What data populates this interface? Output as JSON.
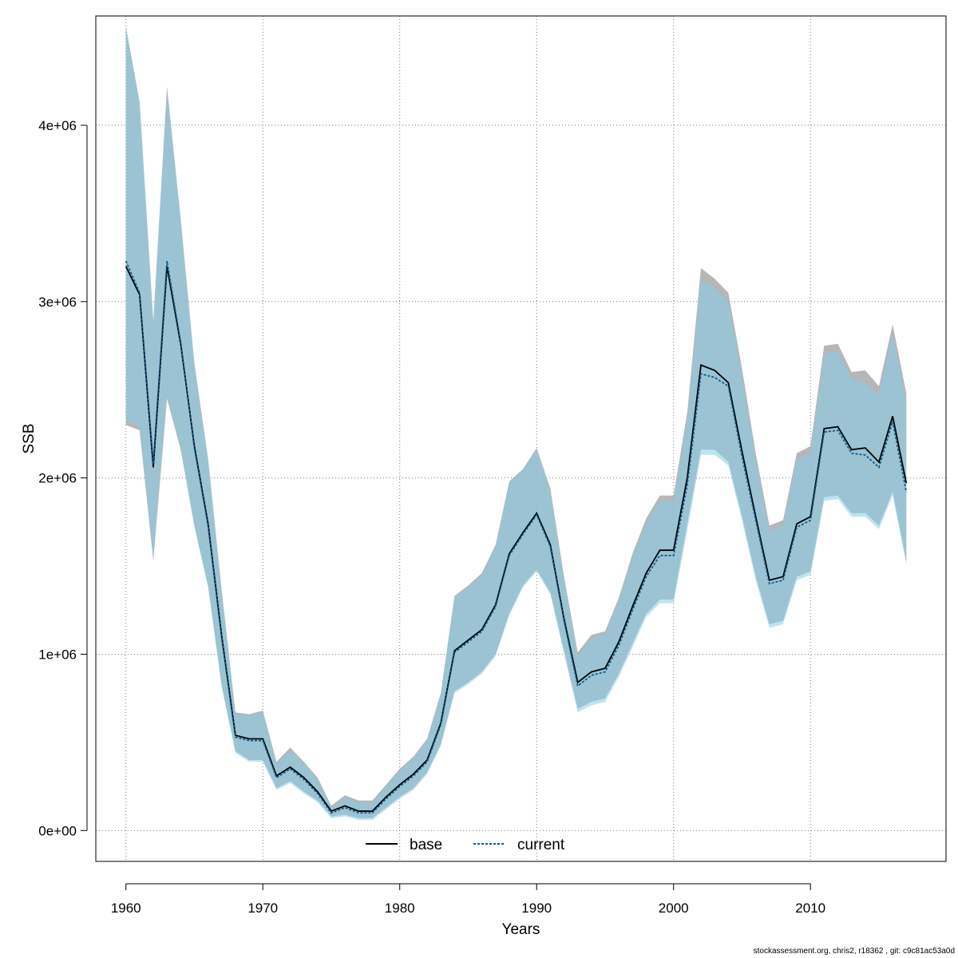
{
  "chart_data": {
    "type": "line",
    "title": "",
    "xlabel": "Years",
    "ylabel": "SSB",
    "xlim": [
      1957.8,
      1960.0
    ],
    "ylim": [
      -175000,
      4620000
    ],
    "x_ticks": [
      1960,
      1970,
      1980,
      1990,
      2000,
      2010
    ],
    "x_tick_labels": [
      "1960",
      "1970",
      "1980",
      "1990",
      "2000",
      "2010"
    ],
    "y_ticks": [
      0,
      1000000,
      2000000,
      3000000,
      4000000
    ],
    "y_tick_labels": [
      "0e+00",
      "1e+06",
      "2e+06",
      "3e+06",
      "4e+06"
    ],
    "grid": true,
    "legend_position": "bottom-center",
    "years": [
      1960,
      1961,
      1962,
      1963,
      1964,
      1965,
      1966,
      1967,
      1968,
      1969,
      1970,
      1971,
      1972,
      1973,
      1974,
      1975,
      1976,
      1977,
      1978,
      1979,
      1980,
      1981,
      1982,
      1983,
      1984,
      1985,
      1986,
      1987,
      1988,
      1989,
      1990,
      1991,
      1992,
      1993,
      1994,
      1995,
      1996,
      1997,
      1998,
      1999,
      2000,
      2001,
      2002,
      2003,
      2004,
      2005,
      2006,
      2007,
      2008,
      2009,
      2010,
      2011,
      2012,
      2013,
      2014,
      2015,
      2016,
      2017
    ],
    "series": [
      {
        "name": "base",
        "line": "solid",
        "line_color": "#000000",
        "band_color": "#a9a9a9",
        "values": [
          3200000,
          3040000,
          2060000,
          3200000,
          2760000,
          2180000,
          1740000,
          1100000,
          540000,
          520000,
          520000,
          310000,
          360000,
          300000,
          220000,
          110000,
          140000,
          110000,
          110000,
          190000,
          260000,
          320000,
          400000,
          610000,
          1020000,
          1080000,
          1140000,
          1280000,
          1570000,
          1690000,
          1800000,
          1620000,
          1200000,
          840000,
          900000,
          920000,
          1070000,
          1270000,
          1460000,
          1590000,
          1590000,
          2000000,
          2640000,
          2610000,
          2540000,
          2150000,
          1780000,
          1420000,
          1440000,
          1740000,
          1780000,
          2280000,
          2290000,
          2160000,
          2170000,
          2090000,
          2350000,
          1970000
        ],
        "lower": [
          2300000,
          2270000,
          1530000,
          2450000,
          2160000,
          1730000,
          1390000,
          820000,
          450000,
          400000,
          400000,
          240000,
          280000,
          220000,
          170000,
          80000,
          90000,
          70000,
          70000,
          130000,
          190000,
          240000,
          330000,
          490000,
          790000,
          840000,
          900000,
          1000000,
          1230000,
          1390000,
          1480000,
          1350000,
          1020000,
          690000,
          730000,
          750000,
          890000,
          1060000,
          1230000,
          1310000,
          1310000,
          1740000,
          2160000,
          2160000,
          2090000,
          1780000,
          1440000,
          1170000,
          1190000,
          1440000,
          1470000,
          1890000,
          1900000,
          1800000,
          1800000,
          1730000,
          1920000,
          1530000
        ],
        "upper": [
          4560000,
          4130000,
          2880000,
          4220000,
          3470000,
          2650000,
          2110000,
          1360000,
          670000,
          660000,
          680000,
          390000,
          470000,
          390000,
          300000,
          140000,
          200000,
          170000,
          170000,
          260000,
          350000,
          420000,
          520000,
          780000,
          1330000,
          1390000,
          1460000,
          1620000,
          1980000,
          2050000,
          2170000,
          1940000,
          1440000,
          1010000,
          1110000,
          1130000,
          1320000,
          1570000,
          1770000,
          1900000,
          1900000,
          2370000,
          3190000,
          3130000,
          3050000,
          2620000,
          2140000,
          1730000,
          1760000,
          2140000,
          2180000,
          2750000,
          2760000,
          2600000,
          2610000,
          2520000,
          2870000,
          2480000
        ]
      },
      {
        "name": "current",
        "line": "dashed",
        "line_color": "#0a5b8c",
        "band_color": "#87ceeb",
        "values": [
          3230000,
          3050000,
          2080000,
          3230000,
          2770000,
          2170000,
          1730000,
          1090000,
          530000,
          510000,
          510000,
          300000,
          350000,
          290000,
          210000,
          100000,
          130000,
          100000,
          100000,
          180000,
          250000,
          310000,
          390000,
          600000,
          1010000,
          1070000,
          1130000,
          1270000,
          1560000,
          1680000,
          1790000,
          1610000,
          1190000,
          820000,
          880000,
          900000,
          1050000,
          1250000,
          1440000,
          1560000,
          1560000,
          1960000,
          2590000,
          2570000,
          2520000,
          2120000,
          1760000,
          1400000,
          1420000,
          1720000,
          1760000,
          2260000,
          2270000,
          2140000,
          2130000,
          2060000,
          2320000,
          1920000
        ],
        "lower": [
          2330000,
          2290000,
          1550000,
          2470000,
          2170000,
          1720000,
          1380000,
          810000,
          440000,
          390000,
          390000,
          230000,
          270000,
          210000,
          160000,
          70000,
          80000,
          60000,
          60000,
          120000,
          180000,
          230000,
          320000,
          480000,
          780000,
          830000,
          890000,
          990000,
          1220000,
          1380000,
          1470000,
          1340000,
          1000000,
          670000,
          710000,
          730000,
          870000,
          1040000,
          1210000,
          1290000,
          1290000,
          1700000,
          2130000,
          2130000,
          2070000,
          1760000,
          1420000,
          1150000,
          1170000,
          1420000,
          1450000,
          1870000,
          1880000,
          1780000,
          1780000,
          1710000,
          1900000,
          1510000
        ],
        "upper": [
          4560000,
          4130000,
          2900000,
          4200000,
          3460000,
          2640000,
          2100000,
          1350000,
          660000,
          650000,
          670000,
          380000,
          460000,
          380000,
          290000,
          130000,
          190000,
          160000,
          160000,
          250000,
          340000,
          410000,
          510000,
          770000,
          1320000,
          1380000,
          1450000,
          1610000,
          1970000,
          2040000,
          2160000,
          1930000,
          1420000,
          990000,
          1090000,
          1110000,
          1300000,
          1550000,
          1750000,
          1870000,
          1870000,
          2330000,
          3120000,
          3080000,
          3000000,
          2580000,
          2110000,
          1700000,
          1730000,
          2100000,
          2140000,
          2700000,
          2720000,
          2560000,
          2540000,
          2470000,
          2820000,
          2440000
        ]
      }
    ]
  },
  "footer": "stockassessment.org, chris2, r18362 , git: c9c81ac53a0d"
}
